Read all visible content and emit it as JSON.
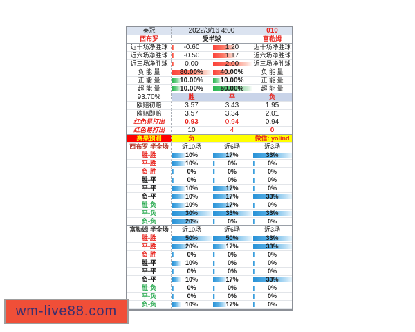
{
  "header": {
    "league": "英冠",
    "datetime": "2022/3/16 4:00",
    "match_no": "010",
    "home_team": "西布罗",
    "handicap": "受半球",
    "away_team": "富勒姆"
  },
  "net_goals": {
    "rows": [
      {
        "label": "近十场净胜球",
        "home_value": "-0.60",
        "away_value": "1.20",
        "away_bar_pct": 60
      },
      {
        "label": "近六场净胜球",
        "home_value": "-0.50",
        "away_value": "1.17",
        "away_bar_pct": 58
      },
      {
        "label": "近三场净胜球",
        "home_value": "0.00",
        "away_value": "2.00",
        "away_bar_pct": 100
      }
    ]
  },
  "energy": {
    "rows": [
      {
        "label": "负 能 量",
        "home_value": "80.00%",
        "home_bar_pct": 100,
        "away_value": "40.00%",
        "away_bar_pct": 50,
        "bar_color": "red"
      },
      {
        "label": "正 能 量",
        "home_value": "10.00%",
        "home_bar_pct": 20,
        "away_value": "10.00%",
        "away_bar_pct": 20,
        "bar_color": "green"
      },
      {
        "label": "超 能 量",
        "home_value": "10.00%",
        "home_bar_pct": 20,
        "away_value": "50.00%",
        "away_bar_pct": 100,
        "bar_color": "green"
      }
    ]
  },
  "odds": {
    "confidence": "93.70%",
    "col_headers": [
      "胜",
      "平",
      "负"
    ],
    "rows": [
      {
        "label": "欧赔初赔",
        "label_style": "plain",
        "values": [
          "3.57",
          "3.43",
          "1.95"
        ],
        "value_styles": [
          "plain",
          "plain",
          "plain"
        ]
      },
      {
        "label": "欧赔即赔",
        "label_style": "plain",
        "values": [
          "3.57",
          "3.34",
          "2.01"
        ],
        "value_styles": [
          "plain",
          "plain",
          "plain"
        ]
      },
      {
        "label": "红色易打出",
        "label_style": "red-italic",
        "values": [
          "0.93",
          "0.94",
          "0.94"
        ],
        "value_styles": [
          "red-bold",
          "red",
          "plain"
        ]
      },
      {
        "label": "红色易打出",
        "label_style": "red-italic",
        "values": [
          "10",
          "4",
          "0"
        ],
        "value_styles": [
          "plain",
          "red",
          "red-bold"
        ]
      }
    ]
  },
  "prediction": {
    "label": "赛果预测",
    "result": "负",
    "middle": "",
    "contact": "微信: yolind"
  },
  "half_full": {
    "col_headers": [
      "近10场",
      "近6场",
      "近3场"
    ],
    "sections": [
      {
        "team_label": "西布罗 半全场",
        "rows": [
          {
            "label": "胜-胜",
            "group": "win",
            "values": [
              10,
              17,
              33
            ]
          },
          {
            "label": "平-胜",
            "group": "win",
            "values": [
              10,
              0,
              0
            ]
          },
          {
            "label": "负-胜",
            "group": "win",
            "values": [
              0,
              0,
              0
            ]
          },
          {
            "label": "胜-平",
            "group": "draw",
            "values": [
              0,
              0,
              0
            ]
          },
          {
            "label": "平-平",
            "group": "draw",
            "values": [
              10,
              17,
              0
            ]
          },
          {
            "label": "负-平",
            "group": "draw",
            "values": [
              10,
              17,
              33
            ]
          },
          {
            "label": "胜-负",
            "group": "lose",
            "values": [
              10,
              17,
              0
            ]
          },
          {
            "label": "平-负",
            "group": "lose",
            "values": [
              30,
              33,
              33
            ]
          },
          {
            "label": "负-负",
            "group": "lose",
            "values": [
              20,
              0,
              0
            ]
          }
        ]
      },
      {
        "team_label": "富勒姆 半全场",
        "rows": [
          {
            "label": "胜-胜",
            "group": "win",
            "values": [
              50,
              50,
              33
            ]
          },
          {
            "label": "平-胜",
            "group": "win",
            "values": [
              20,
              17,
              33
            ]
          },
          {
            "label": "负-胜",
            "group": "win",
            "values": [
              0,
              0,
              0
            ]
          },
          {
            "label": "胜-平",
            "group": "draw",
            "values": [
              10,
              0,
              0
            ]
          },
          {
            "label": "平-平",
            "group": "draw",
            "values": [
              0,
              0,
              0
            ]
          },
          {
            "label": "负-平",
            "group": "draw",
            "values": [
              10,
              17,
              33
            ]
          },
          {
            "label": "胜-负",
            "group": "lose",
            "values": [
              0,
              0,
              0
            ]
          },
          {
            "label": "平-负",
            "group": "lose",
            "values": [
              0,
              0,
              0
            ]
          },
          {
            "label": "负-负",
            "group": "lose",
            "values": [
              10,
              17,
              0
            ]
          }
        ]
      }
    ]
  },
  "watermark": {
    "text": "wm-live88.com"
  },
  "colors": {
    "accent_red": "#e8251f",
    "green_label": "#27a94f",
    "bar_blue": "#2892d7",
    "bar_red": "#fb423a",
    "bar_green": "#28b551",
    "header_bg": "#dbe3f0",
    "wdl_header_bg": "#c9d4e9",
    "prediction_bg": "#fe0000",
    "highlight_yellow": "#ffff00",
    "watermark_bg": "#f04f38",
    "watermark_text": "#3b2f6e"
  }
}
